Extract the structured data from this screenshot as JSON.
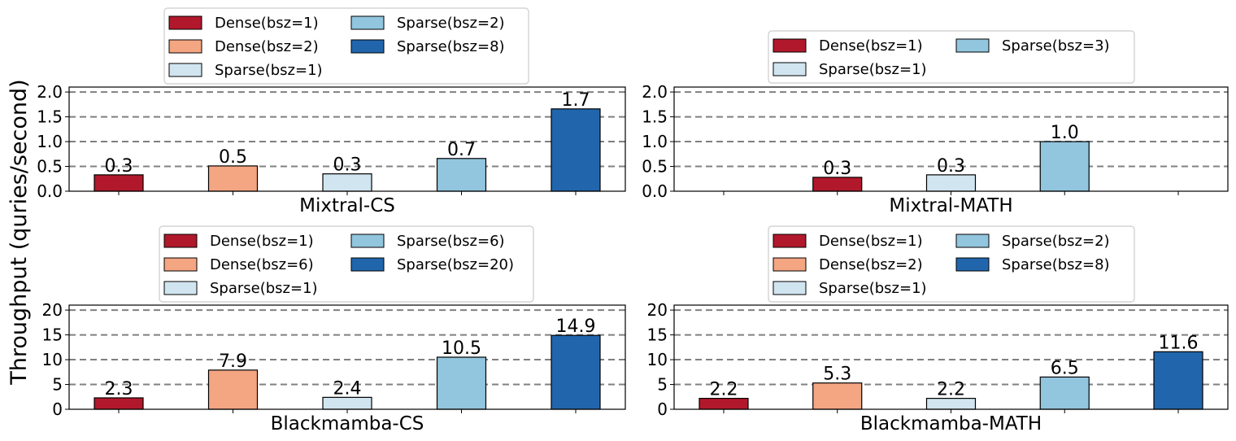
{
  "figure": {
    "ylabel": "Throughput (quries/second)"
  },
  "colors": {
    "Dense(bsz=1)": "#b2182b",
    "Dense(bsz=2)": "#f4a582",
    "Dense(bsz=6)": "#f4a582",
    "Sparse(bsz=1)": "#d1e5f0",
    "Sparse(bsz=2)": "#92c5de",
    "Sparse(bsz=3)": "#92c5de",
    "Sparse(bsz=6)": "#92c5de",
    "Sparse(bsz=8)": "#2166ac",
    "Sparse(bsz=20)": "#2166ac"
  },
  "chart_data": [
    {
      "type": "bar",
      "xlabel": "Mixtral-CS",
      "ylim": [
        0,
        2.1
      ],
      "yticks": [
        0.0,
        0.5,
        1.0,
        1.5,
        2.0
      ],
      "ytick_labels": [
        "0.0",
        "0.5",
        "1.0",
        "1.5",
        "2.0"
      ],
      "gridlines": [
        0.5,
        1.0,
        1.5,
        2.0
      ],
      "legend": [
        "Dense(bsz=1)",
        "Dense(bsz=2)",
        "Sparse(bsz=1)",
        "Sparse(bsz=2)",
        "Sparse(bsz=8)"
      ],
      "bars": [
        {
          "slot": 0,
          "series": "Dense(bsz=1)",
          "value": 0.33,
          "label": "0.3"
        },
        {
          "slot": 1,
          "series": "Dense(bsz=2)",
          "value": 0.51,
          "label": "0.5"
        },
        {
          "slot": 2,
          "series": "Sparse(bsz=1)",
          "value": 0.35,
          "label": "0.3"
        },
        {
          "slot": 3,
          "series": "Sparse(bsz=2)",
          "value": 0.66,
          "label": "0.7"
        },
        {
          "slot": 4,
          "series": "Sparse(bsz=8)",
          "value": 1.66,
          "label": "1.7"
        }
      ]
    },
    {
      "type": "bar",
      "xlabel": "Mixtral-MATH",
      "ylim": [
        0,
        2.1
      ],
      "yticks": [
        0.0,
        0.5,
        1.0,
        1.5,
        2.0
      ],
      "ytick_labels": [
        "0.0",
        "0.5",
        "1.0",
        "1.5",
        "2.0"
      ],
      "gridlines": [
        0.5,
        1.0,
        1.5,
        2.0
      ],
      "legend": [
        "Dense(bsz=1)",
        "Sparse(bsz=1)",
        "Sparse(bsz=3)"
      ],
      "bars": [
        {
          "slot": 1,
          "series": "Dense(bsz=1)",
          "value": 0.28,
          "label": "0.3"
        },
        {
          "slot": 2,
          "series": "Sparse(bsz=1)",
          "value": 0.33,
          "label": "0.3"
        },
        {
          "slot": 3,
          "series": "Sparse(bsz=3)",
          "value": 1.0,
          "label": "1.0"
        }
      ]
    },
    {
      "type": "bar",
      "xlabel": "Blackmamba-CS",
      "ylim": [
        0,
        21
      ],
      "yticks": [
        0,
        5,
        10,
        15,
        20
      ],
      "ytick_labels": [
        "0",
        "5",
        "10",
        "15",
        "20"
      ],
      "gridlines": [
        5,
        10,
        15,
        20
      ],
      "legend": [
        "Dense(bsz=1)",
        "Dense(bsz=6)",
        "Sparse(bsz=1)",
        "Sparse(bsz=6)",
        "Sparse(bsz=20)"
      ],
      "bars": [
        {
          "slot": 0,
          "series": "Dense(bsz=1)",
          "value": 2.3,
          "label": "2.3"
        },
        {
          "slot": 1,
          "series": "Dense(bsz=6)",
          "value": 7.9,
          "label": "7.9"
        },
        {
          "slot": 2,
          "series": "Sparse(bsz=1)",
          "value": 2.4,
          "label": "2.4"
        },
        {
          "slot": 3,
          "series": "Sparse(bsz=6)",
          "value": 10.5,
          "label": "10.5"
        },
        {
          "slot": 4,
          "series": "Sparse(bsz=20)",
          "value": 14.9,
          "label": "14.9"
        }
      ]
    },
    {
      "type": "bar",
      "xlabel": "Blackmamba-MATH",
      "ylim": [
        0,
        21
      ],
      "yticks": [
        0,
        5,
        10,
        15,
        20
      ],
      "ytick_labels": [
        "0",
        "5",
        "10",
        "15",
        "20"
      ],
      "gridlines": [
        5,
        10,
        15,
        20
      ],
      "legend": [
        "Dense(bsz=1)",
        "Dense(bsz=2)",
        "Sparse(bsz=1)",
        "Sparse(bsz=2)",
        "Sparse(bsz=8)"
      ],
      "bars": [
        {
          "slot": 0,
          "series": "Dense(bsz=1)",
          "value": 2.2,
          "label": "2.2"
        },
        {
          "slot": 1,
          "series": "Dense(bsz=2)",
          "value": 5.3,
          "label": "5.3"
        },
        {
          "slot": 2,
          "series": "Sparse(bsz=1)",
          "value": 2.2,
          "label": "2.2"
        },
        {
          "slot": 3,
          "series": "Sparse(bsz=2)",
          "value": 6.5,
          "label": "6.5"
        },
        {
          "slot": 4,
          "series": "Sparse(bsz=8)",
          "value": 11.6,
          "label": "11.6"
        }
      ]
    }
  ]
}
